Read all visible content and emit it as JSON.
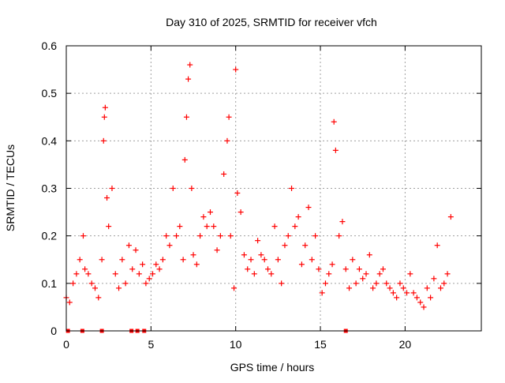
{
  "chart_data": {
    "type": "scatter",
    "title": "Day 310 of 2025, SRMTID for receiver vfch",
    "xlabel": "GPS time / hours",
    "ylabel": "SRMTID / TECUs",
    "xlim": [
      0,
      24.5
    ],
    "ylim": [
      0,
      0.6
    ],
    "xticks": [
      0,
      5,
      10,
      15,
      20
    ],
    "yticks": [
      0,
      0.1,
      0.2,
      0.3,
      0.4,
      0.5,
      0.6
    ],
    "xtick_labels": [
      "0",
      "5",
      "10",
      "15",
      "20"
    ],
    "ytick_labels": [
      "0",
      "0.1",
      "0.2",
      "0.3",
      "0.4",
      "0.5",
      "0.6"
    ],
    "grid": true,
    "marker": "+",
    "series_color": "#ff0000",
    "gap_markers": [
      0.1,
      0.95,
      2.1,
      3.85,
      4.2,
      4.6,
      16.5
    ],
    "series": [
      {
        "name": "SRMTID",
        "x": [
          0.0,
          0.2,
          0.4,
          0.6,
          0.8,
          1.0,
          1.1,
          1.3,
          1.5,
          1.7,
          1.9,
          2.1,
          2.2,
          2.25,
          2.3,
          2.4,
          2.5,
          2.7,
          2.9,
          3.1,
          3.3,
          3.5,
          3.7,
          3.9,
          4.1,
          4.3,
          4.5,
          4.7,
          4.9,
          5.1,
          5.3,
          5.5,
          5.7,
          5.9,
          6.1,
          6.3,
          6.5,
          6.7,
          6.9,
          7.0,
          7.1,
          7.2,
          7.3,
          7.4,
          7.5,
          7.7,
          7.9,
          8.1,
          8.3,
          8.5,
          8.7,
          8.9,
          9.1,
          9.3,
          9.5,
          9.6,
          9.7,
          9.9,
          10.0,
          10.1,
          10.3,
          10.5,
          10.7,
          10.9,
          11.1,
          11.3,
          11.5,
          11.7,
          11.9,
          12.1,
          12.3,
          12.5,
          12.7,
          12.9,
          13.1,
          13.3,
          13.5,
          13.7,
          13.9,
          14.1,
          14.3,
          14.5,
          14.7,
          14.9,
          15.1,
          15.3,
          15.5,
          15.7,
          15.8,
          15.9,
          16.1,
          16.3,
          16.5,
          16.7,
          16.9,
          17.1,
          17.3,
          17.5,
          17.7,
          17.9,
          18.1,
          18.3,
          18.5,
          18.7,
          18.9,
          19.1,
          19.3,
          19.5,
          19.7,
          19.9,
          20.1,
          20.3,
          20.5,
          20.7,
          20.9,
          21.1,
          21.3,
          21.5,
          21.7,
          21.9,
          22.1,
          22.3,
          22.5,
          22.7
        ],
        "y": [
          0.07,
          0.06,
          0.1,
          0.12,
          0.15,
          0.2,
          0.13,
          0.12,
          0.1,
          0.09,
          0.07,
          0.15,
          0.4,
          0.45,
          0.47,
          0.28,
          0.22,
          0.3,
          0.12,
          0.09,
          0.15,
          0.1,
          0.18,
          0.13,
          0.17,
          0.12,
          0.14,
          0.1,
          0.11,
          0.12,
          0.14,
          0.13,
          0.15,
          0.2,
          0.18,
          0.3,
          0.2,
          0.22,
          0.15,
          0.36,
          0.45,
          0.53,
          0.56,
          0.3,
          0.16,
          0.14,
          0.2,
          0.24,
          0.22,
          0.25,
          0.22,
          0.17,
          0.2,
          0.33,
          0.4,
          0.45,
          0.2,
          0.09,
          0.55,
          0.29,
          0.25,
          0.16,
          0.13,
          0.15,
          0.12,
          0.19,
          0.16,
          0.15,
          0.13,
          0.12,
          0.22,
          0.15,
          0.1,
          0.18,
          0.2,
          0.3,
          0.22,
          0.24,
          0.14,
          0.18,
          0.26,
          0.15,
          0.2,
          0.13,
          0.08,
          0.1,
          0.12,
          0.14,
          0.44,
          0.38,
          0.2,
          0.23,
          0.13,
          0.09,
          0.15,
          0.1,
          0.13,
          0.11,
          0.12,
          0.16,
          0.09,
          0.1,
          0.12,
          0.13,
          0.1,
          0.09,
          0.08,
          0.07,
          0.1,
          0.09,
          0.08,
          0.12,
          0.08,
          0.07,
          0.06,
          0.05,
          0.09,
          0.07,
          0.11,
          0.18,
          0.09,
          0.1,
          0.12,
          0.24
        ]
      }
    ]
  }
}
